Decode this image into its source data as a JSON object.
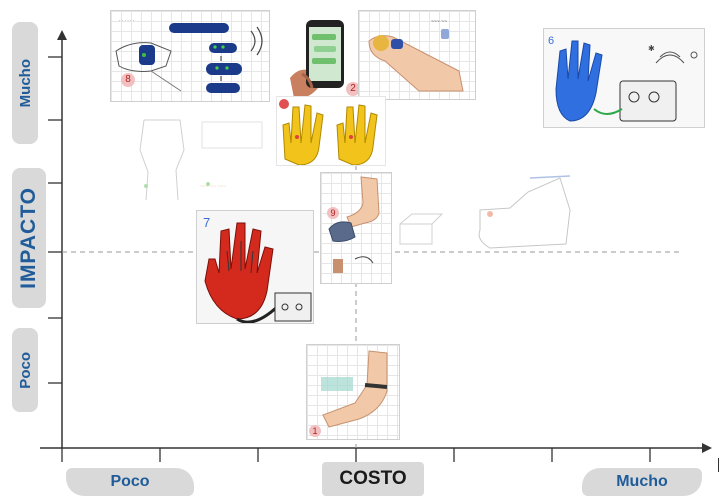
{
  "axes": {
    "y_title": "IMPACTO",
    "y_low": "Poco",
    "y_high": "Mucho",
    "x_title": "COSTO",
    "x_low": "Poco",
    "x_high": "Mucho"
  },
  "cards": {
    "card1_num": "1",
    "card2_num": "2",
    "card6_num": "6",
    "card7_num": "7",
    "card8_num": "8",
    "card9_num": "9"
  },
  "colors": {
    "pill_bg": "#d9d9d9",
    "label_text": "#1f5c99",
    "axis": "#333333",
    "dashed_line": "#9a9a9a"
  }
}
